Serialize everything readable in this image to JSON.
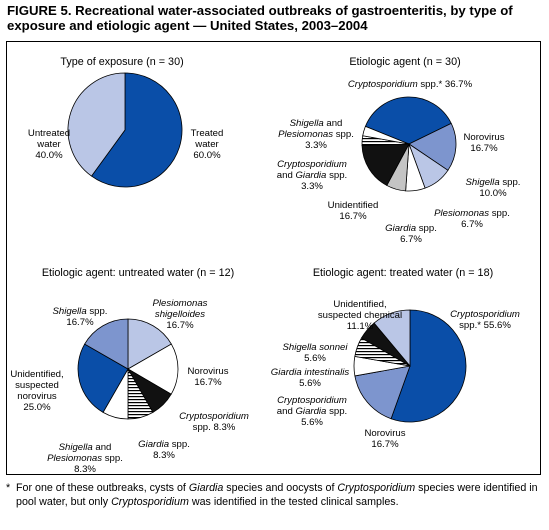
{
  "figure": {
    "title": "FIGURE 5. Recreational water-associated outbreaks of gastroenteritis, by type of exposure and etiologic agent — United States, 2003–2004",
    "footnote_marker": "*",
    "footnote": [
      {
        "text": "For one of these outbreaks, cysts of ",
        "italic": false
      },
      {
        "text": "Giardia",
        "italic": true
      },
      {
        "text": " species and oocysts of ",
        "italic": false
      },
      {
        "text": "Cryptosporidium",
        "italic": true
      },
      {
        "text": " species were identified in pool water, but only ",
        "italic": false
      },
      {
        "text": "Cryptosporidium",
        "italic": true
      },
      {
        "text": " was identified in the tested clinical samples.",
        "italic": false
      }
    ]
  },
  "colors": {
    "dark_blue": "#0a4ea8",
    "medium_blue": "#7d95ce",
    "light_blue": "#bac6e6",
    "black": "#111111",
    "gray": "#c4c4c4",
    "white": "#ffffff",
    "outline": "#000000"
  },
  "chart_data": [
    {
      "type": "pie",
      "title": "Type of exposure (n = 30)",
      "slices": [
        {
          "lines": [
            [
              {
                "t": "Treated"
              }
            ],
            [
              {
                "t": "water"
              }
            ],
            [
              {
                "t": "60.0%"
              }
            ]
          ],
          "value": 60.0,
          "fill": "dark_blue"
        },
        {
          "lines": [
            [
              {
                "t": "Untreated"
              }
            ],
            [
              {
                "t": "water"
              }
            ],
            [
              {
                "t": "40.0%"
              }
            ]
          ],
          "value": 40.0,
          "fill": "light_blue"
        }
      ]
    },
    {
      "type": "pie",
      "title": "Etiologic agent (n = 30)",
      "slices": [
        {
          "lines": [
            [
              {
                "t": "Cryptosporidium",
                "i": true
              },
              {
                "t": " spp.* 36.7%"
              }
            ]
          ],
          "value": 36.7,
          "fill": "dark_blue"
        },
        {
          "lines": [
            [
              {
                "t": "Norovirus"
              }
            ],
            [
              {
                "t": "16.7%"
              }
            ]
          ],
          "value": 16.7,
          "fill": "medium_blue"
        },
        {
          "lines": [
            [
              {
                "t": "Shigella",
                "i": true
              },
              {
                "t": " spp."
              }
            ],
            [
              {
                "t": "10.0%"
              }
            ]
          ],
          "value": 10.0,
          "fill": "light_blue"
        },
        {
          "lines": [
            [
              {
                "t": "Plesiomonas",
                "i": true
              },
              {
                "t": " spp."
              }
            ],
            [
              {
                "t": "6.7%"
              }
            ]
          ],
          "value": 6.7,
          "fill": "white"
        },
        {
          "lines": [
            [
              {
                "t": "Giardia",
                "i": true
              },
              {
                "t": " spp."
              }
            ],
            [
              {
                "t": "6.7%"
              }
            ]
          ],
          "value": 6.7,
          "fill": "gray"
        },
        {
          "lines": [
            [
              {
                "t": "Unidentified"
              }
            ],
            [
              {
                "t": "16.7%"
              }
            ]
          ],
          "value": 16.7,
          "fill": "black"
        },
        {
          "lines": [
            [
              {
                "t": "Cryptosporidium",
                "i": true
              }
            ],
            [
              {
                "t": "and "
              },
              {
                "t": "Giardia",
                "i": true
              },
              {
                "t": " spp."
              }
            ],
            [
              {
                "t": "3.3%"
              }
            ]
          ],
          "value": 3.3,
          "fill": "stripes"
        },
        {
          "lines": [
            [
              {
                "t": "Shigella",
                "i": true
              },
              {
                "t": " and"
              }
            ],
            [
              {
                "t": "Plesiomonas",
                "i": true
              },
              {
                "t": " spp."
              }
            ],
            [
              {
                "t": "3.3%"
              }
            ]
          ],
          "value": 3.3,
          "fill": "white"
        }
      ]
    },
    {
      "type": "pie",
      "title": "Etiologic agent: untreated water (n = 12)",
      "slices": [
        {
          "lines": [
            [
              {
                "t": "Plesiomonas",
                "i": true
              }
            ],
            [
              {
                "t": "shigelloides",
                "i": true
              }
            ],
            [
              {
                "t": "16.7%"
              }
            ]
          ],
          "value": 16.7,
          "fill": "light_blue"
        },
        {
          "lines": [
            [
              {
                "t": "Norovirus"
              }
            ],
            [
              {
                "t": "16.7%"
              }
            ]
          ],
          "value": 16.7,
          "fill": "white"
        },
        {
          "lines": [
            [
              {
                "t": "Cryptosporidium",
                "i": true
              }
            ],
            [
              {
                "t": "spp. 8.3%"
              }
            ]
          ],
          "value": 8.3,
          "fill": "black"
        },
        {
          "lines": [
            [
              {
                "t": "Giardia",
                "i": true
              },
              {
                "t": " spp."
              }
            ],
            [
              {
                "t": "8.3%"
              }
            ]
          ],
          "value": 8.3,
          "fill": "stripes"
        },
        {
          "lines": [
            [
              {
                "t": "Shigella",
                "i": true
              },
              {
                "t": " and"
              }
            ],
            [
              {
                "t": "Plesiomonas",
                "i": true
              },
              {
                "t": " spp."
              }
            ],
            [
              {
                "t": "8.3%"
              }
            ]
          ],
          "value": 8.3,
          "fill": "white"
        },
        {
          "lines": [
            [
              {
                "t": "Unidentified,"
              }
            ],
            [
              {
                "t": "suspected"
              }
            ],
            [
              {
                "t": "norovirus"
              }
            ],
            [
              {
                "t": "25.0%"
              }
            ]
          ],
          "value": 25.0,
          "fill": "dark_blue"
        },
        {
          "lines": [
            [
              {
                "t": "Shigella",
                "i": true
              },
              {
                "t": " spp."
              }
            ],
            [
              {
                "t": "16.7%"
              }
            ]
          ],
          "value": 16.7,
          "fill": "medium_blue"
        }
      ]
    },
    {
      "type": "pie",
      "title": "Etiologic agent: treated water (n = 18)",
      "slices": [
        {
          "lines": [
            [
              {
                "t": "Cryptosporidium",
                "i": true
              }
            ],
            [
              {
                "t": "spp.* 55.6%"
              }
            ]
          ],
          "value": 55.6,
          "fill": "dark_blue"
        },
        {
          "lines": [
            [
              {
                "t": "Norovirus"
              }
            ],
            [
              {
                "t": "16.7%"
              }
            ]
          ],
          "value": 16.7,
          "fill": "medium_blue"
        },
        {
          "lines": [
            [
              {
                "t": "Cryptosporidium",
                "i": true
              }
            ],
            [
              {
                "t": "and "
              },
              {
                "t": "Giardia",
                "i": true
              },
              {
                "t": " spp."
              }
            ],
            [
              {
                "t": "5.6%"
              }
            ]
          ],
          "value": 5.6,
          "fill": "white"
        },
        {
          "lines": [
            [
              {
                "t": "Giardia intestinalis",
                "i": true
              }
            ],
            [
              {
                "t": "5.6%"
              }
            ]
          ],
          "value": 5.6,
          "fill": "stripes"
        },
        {
          "lines": [
            [
              {
                "t": "Shigella sonnei",
                "i": true
              }
            ],
            [
              {
                "t": "5.6%"
              }
            ]
          ],
          "value": 5.6,
          "fill": "black"
        },
        {
          "lines": [
            [
              {
                "t": "Unidentified,"
              }
            ],
            [
              {
                "t": "suspected chemical"
              }
            ],
            [
              {
                "t": "11.1%"
              }
            ]
          ],
          "value": 11.1,
          "fill": "light_blue"
        }
      ]
    }
  ]
}
